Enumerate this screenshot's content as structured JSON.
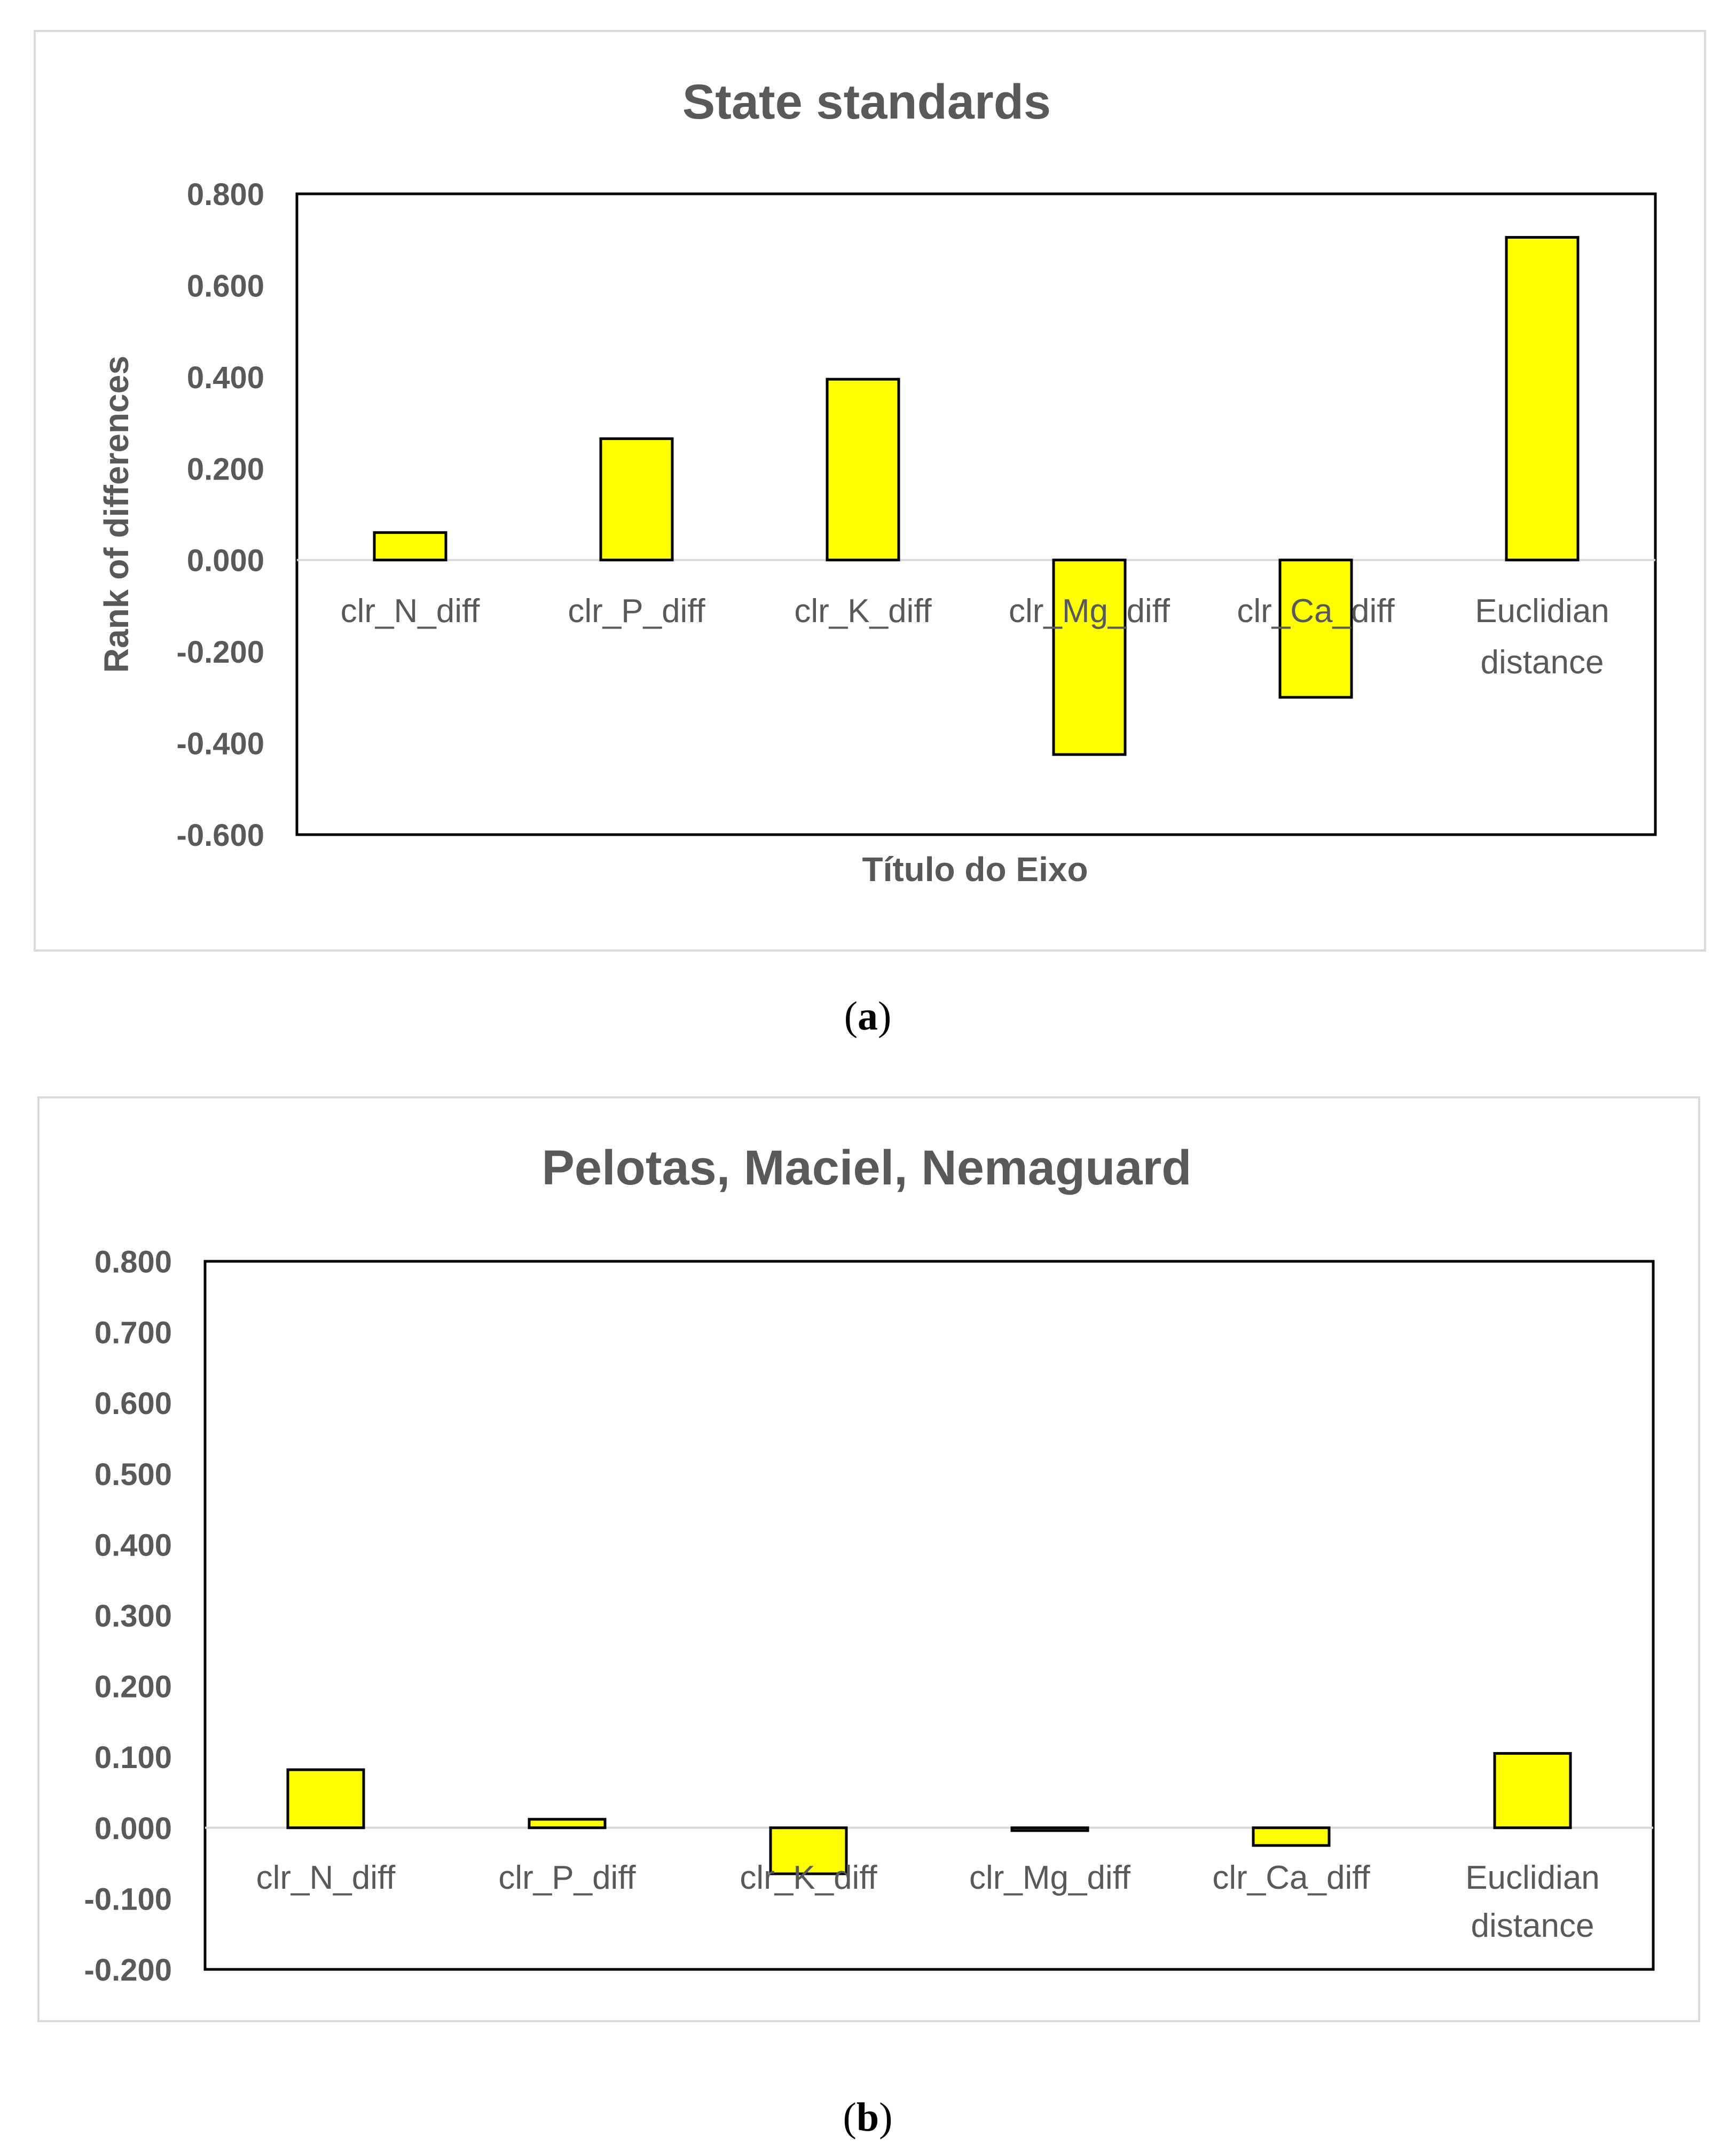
{
  "colors": {
    "bar": "#FFFF00",
    "bar_stroke": "#000000",
    "text": "#595959",
    "frame": "#D9D9D9"
  },
  "chart_data": [
    {
      "panel": "a",
      "type": "bar",
      "title": "State standards",
      "xlabel": "Título do Eixo",
      "ylabel": "Rank of differences",
      "ylim": [
        -0.6,
        0.8
      ],
      "yticks": [
        "0.800",
        "0.600",
        "0.400",
        "0.200",
        "0.000",
        "-0.200",
        "-0.400",
        "-0.600"
      ],
      "ytick_values": [
        0.8,
        0.6,
        0.4,
        0.2,
        0.0,
        -0.2,
        -0.4,
        -0.6
      ],
      "categories": [
        [
          "clr_N_diff"
        ],
        [
          "clr_P_diff"
        ],
        [
          "clr_K_diff"
        ],
        [
          "clr_Mg_diff"
        ],
        [
          "clr_Ca_diff"
        ],
        [
          "Euclidian",
          "distance"
        ]
      ],
      "values": [
        0.06,
        0.265,
        0.395,
        -0.425,
        -0.3,
        0.705
      ],
      "grid": false
    },
    {
      "panel": "b",
      "type": "bar",
      "title": "Pelotas, Maciel, Nemaguard",
      "xlabel": "",
      "ylabel": "",
      "ylim": [
        -0.2,
        0.8
      ],
      "yticks": [
        "0.800",
        "0.700",
        "0.600",
        "0.500",
        "0.400",
        "0.300",
        "0.200",
        "0.100",
        "0.000",
        "-0.100",
        "-0.200"
      ],
      "ytick_values": [
        0.8,
        0.7,
        0.6,
        0.5,
        0.4,
        0.3,
        0.2,
        0.1,
        0.0,
        -0.1,
        -0.2
      ],
      "categories": [
        [
          "clr_N_diff"
        ],
        [
          "clr_P_diff"
        ],
        [
          "clr_K_diff"
        ],
        [
          "clr_Mg_diff"
        ],
        [
          "clr_Ca_diff"
        ],
        [
          "Euclidian",
          "distance"
        ]
      ],
      "values": [
        0.082,
        0.012,
        -0.065,
        -0.004,
        -0.025,
        0.105
      ],
      "grid": false
    }
  ],
  "panel_labels": [
    {
      "open": "(",
      "letter": "a",
      "close": ")"
    },
    {
      "open": "(",
      "letter": "b",
      "close": ")"
    }
  ]
}
